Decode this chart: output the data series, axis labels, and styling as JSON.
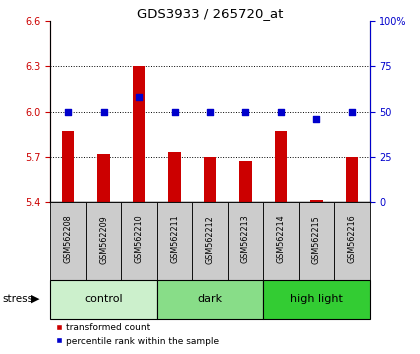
{
  "title": "GDS3933 / 265720_at",
  "samples": [
    "GSM562208",
    "GSM562209",
    "GSM562210",
    "GSM562211",
    "GSM562212",
    "GSM562213",
    "GSM562214",
    "GSM562215",
    "GSM562216"
  ],
  "red_values": [
    5.87,
    5.72,
    6.3,
    5.73,
    5.7,
    5.67,
    5.87,
    5.41,
    5.7
  ],
  "blue_values": [
    50,
    50,
    58,
    50,
    50,
    50,
    50,
    46,
    50
  ],
  "ylim_left": [
    5.4,
    6.6
  ],
  "ylim_right": [
    0,
    100
  ],
  "yticks_left": [
    5.4,
    5.7,
    6.0,
    6.3,
    6.6
  ],
  "yticks_right": [
    0,
    25,
    50,
    75,
    100
  ],
  "groups": [
    {
      "label": "control",
      "indices": [
        0,
        1,
        2
      ],
      "color": "#ccf0cc"
    },
    {
      "label": "dark",
      "indices": [
        3,
        4,
        5
      ],
      "color": "#88dd88"
    },
    {
      "label": "high light",
      "indices": [
        6,
        7,
        8
      ],
      "color": "#33cc33"
    }
  ],
  "stress_label": "stress",
  "legend_red": "transformed count",
  "legend_blue": "percentile rank within the sample",
  "bar_color": "#cc0000",
  "dot_color": "#0000cc",
  "background_color": "#ffffff",
  "sample_box_color": "#cccccc",
  "title_color": "#000000",
  "axis_left_color": "#cc0000",
  "axis_right_color": "#0000cc",
  "bar_width": 0.35
}
